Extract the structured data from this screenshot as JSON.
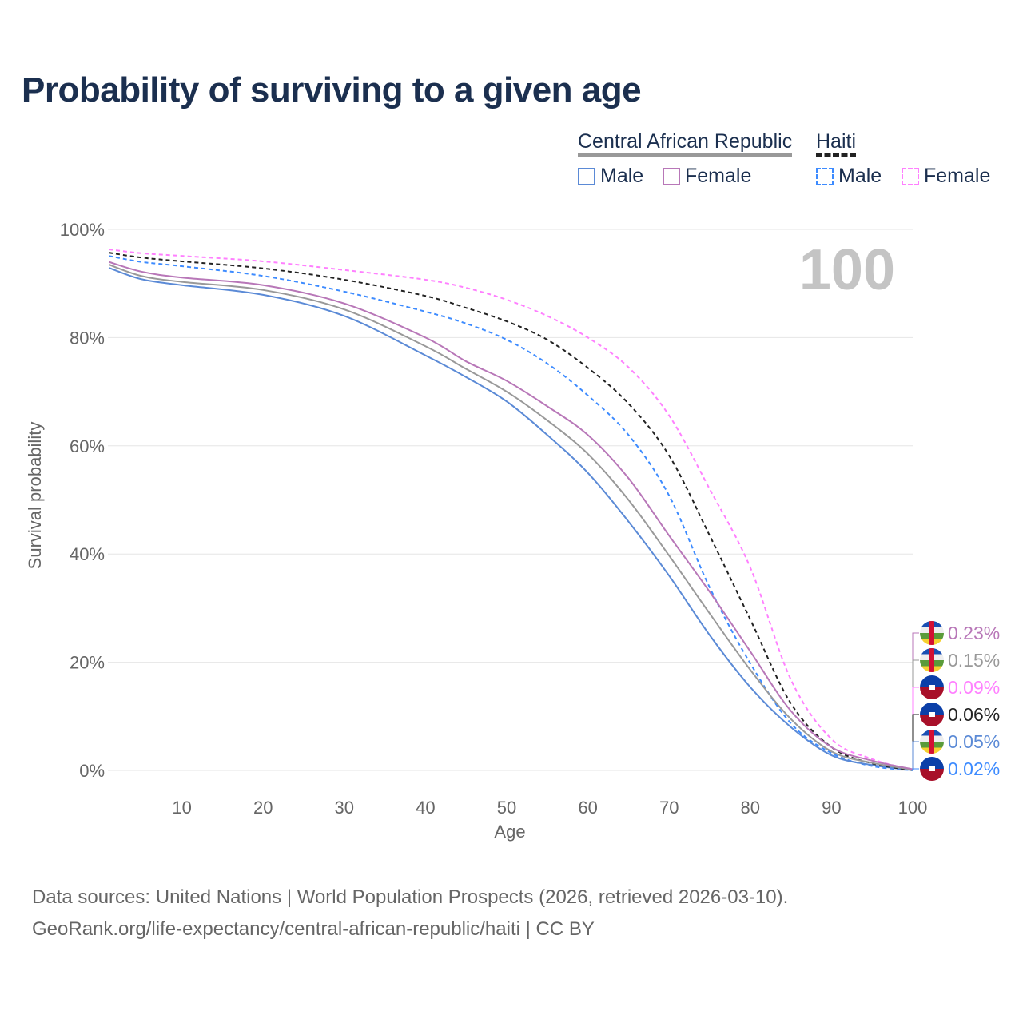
{
  "title": "Probability of surviving to a given age",
  "legend": {
    "groups": [
      {
        "name": "Central African Republic",
        "male": "Male",
        "female": "Female"
      },
      {
        "name": "Haiti",
        "male": "Male",
        "female": "Female"
      }
    ]
  },
  "age_indicator": "100",
  "source_line1": "Data sources: United Nations | World Population Prospects (2026, retrieved 2026-03-10).",
  "source_line2": "GeoRank.org/life-expectancy/central-african-republic/haiti | CC BY",
  "chart_data": {
    "type": "line",
    "title": "Probability of surviving to a given age",
    "xlabel": "Age",
    "ylabel": "Survival probability",
    "xlim": [
      0,
      100
    ],
    "ylim": [
      0,
      100
    ],
    "x_ticks": [
      "10",
      "20",
      "30",
      "40",
      "50",
      "60",
      "70",
      "80",
      "90",
      "100"
    ],
    "y_ticks": [
      "0%",
      "20%",
      "40%",
      "60%",
      "80%",
      "100%"
    ],
    "grid": true,
    "x": [
      1,
      5,
      10,
      20,
      30,
      40,
      45,
      50,
      55,
      60,
      65,
      70,
      75,
      80,
      85,
      90,
      95,
      100
    ],
    "series": [
      {
        "name": "Central African Republic Female",
        "color": "#b877b8",
        "dash": false,
        "end_label": "0.23%",
        "flag": "car",
        "values": [
          94,
          92.2,
          91.1,
          89.7,
          86.3,
          80,
          75.6,
          72,
          67.3,
          62,
          54,
          43.4,
          33,
          22,
          11,
          4.3,
          1.8,
          0.23
        ]
      },
      {
        "name": "Central African Republic",
        "color": "#999999",
        "dash": false,
        "end_label": "0.15%",
        "flag": "car",
        "values": [
          93.5,
          91.4,
          90.3,
          88.8,
          85.2,
          78.4,
          74.2,
          70,
          64.7,
          58.5,
          50,
          39.7,
          29,
          18.6,
          9.5,
          3.5,
          1.4,
          0.15
        ]
      },
      {
        "name": "Haiti Female",
        "color": "#ff80ff",
        "dash": true,
        "end_label": "0.09%",
        "flag": "haiti",
        "values": [
          96.3,
          95.6,
          95.1,
          94.1,
          92.5,
          90.7,
          89.2,
          87,
          84,
          80,
          74.5,
          65.6,
          52,
          37.5,
          16.8,
          5.8,
          2.1,
          0.09
        ]
      },
      {
        "name": "Haiti",
        "color": "#222222",
        "dash": true,
        "end_label": "0.06%",
        "flag": "haiti",
        "values": [
          95.7,
          94.8,
          94.1,
          92.8,
          90.7,
          87.7,
          85.5,
          83,
          79.6,
          74.4,
          67.8,
          58.2,
          43.4,
          27.9,
          12.4,
          4.3,
          1.3,
          0.06
        ]
      },
      {
        "name": "Central African Republic Male",
        "color": "#5b8ad6",
        "dash": false,
        "end_label": "0.05%",
        "flag": "car",
        "values": [
          92.9,
          90.8,
          89.7,
          87.9,
          84,
          76.7,
          72.7,
          68.2,
          62,
          55,
          46,
          36,
          25,
          15.4,
          8,
          2.8,
          1.0,
          0.05
        ]
      },
      {
        "name": "Haiti Male",
        "color": "#3d8bff",
        "dash": true,
        "end_label": "0.02%",
        "flag": "haiti",
        "values": [
          95.1,
          94,
          93.2,
          91.4,
          88.5,
          84.8,
          82.6,
          79.6,
          75.2,
          69.3,
          62,
          50.8,
          33.8,
          19.8,
          8.7,
          3.2,
          0.8,
          0.02
        ]
      }
    ]
  }
}
